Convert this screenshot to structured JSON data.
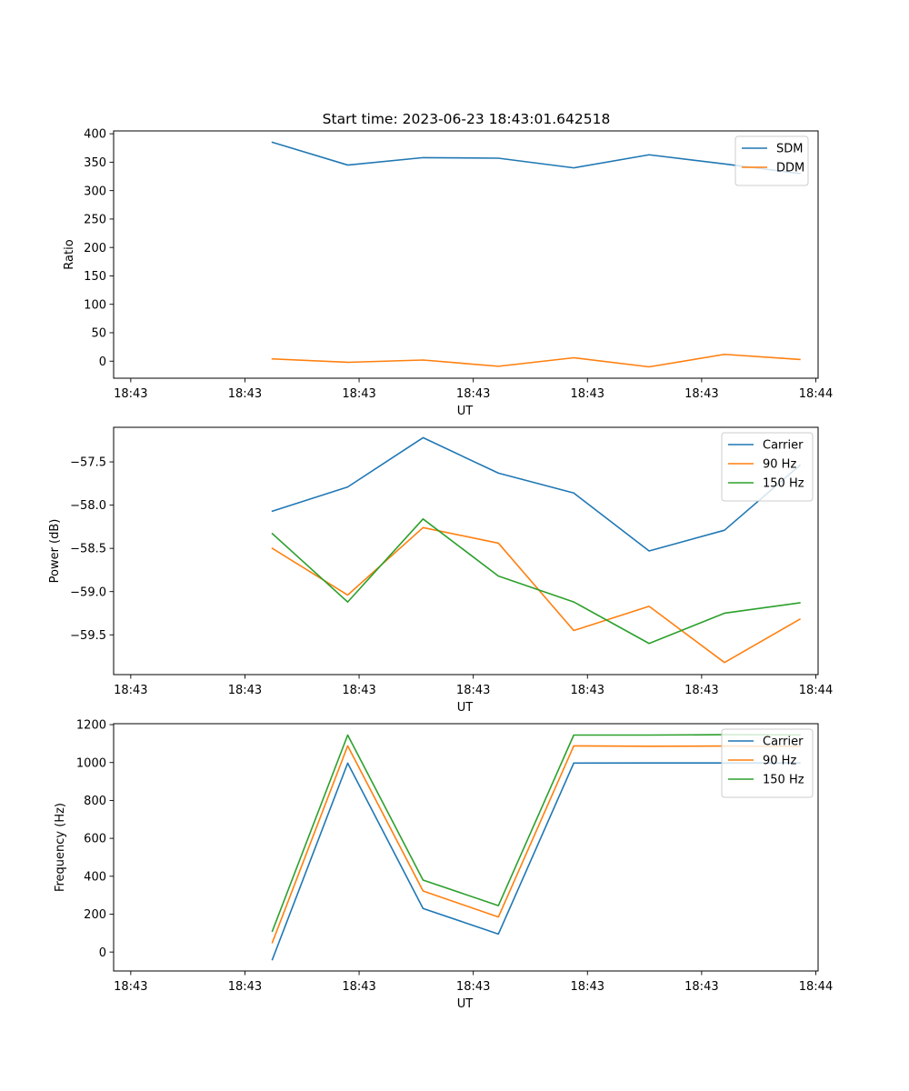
{
  "figure": {
    "title": "Start time: 2023-06-23 18:43:01.642518"
  },
  "chart_data": [
    {
      "type": "line",
      "title": "Start time: 2023-06-23 18:43:01.642518",
      "xlabel": "UT",
      "ylabel": "Ratio",
      "x": [
        1.64,
        2.3,
        2.96,
        3.62,
        4.28,
        4.94,
        5.6,
        6.26
      ],
      "xlim": [
        0.25,
        6.42
      ],
      "x_ticks": [
        0.4,
        1.4,
        2.4,
        3.4,
        4.4,
        5.4,
        6.4
      ],
      "x_tick_labels": [
        "18:43",
        "18:43",
        "18:43",
        "18:43",
        "18:43",
        "18:43",
        "18:44"
      ],
      "ylim": [
        -30,
        405
      ],
      "y_ticks": [
        0,
        50,
        100,
        150,
        200,
        250,
        300,
        350,
        400
      ],
      "y_tick_labels": [
        "0",
        "50",
        "100",
        "150",
        "200",
        "250",
        "300",
        "350",
        "400"
      ],
      "grid": false,
      "legend_position": "upper-right",
      "series": [
        {
          "name": "SDM",
          "color": "#1f77b4",
          "values": [
            385,
            345,
            358,
            357,
            340,
            363,
            347,
            330
          ]
        },
        {
          "name": "DDM",
          "color": "#ff7f0e",
          "values": [
            4,
            -2,
            2,
            -9,
            6,
            -10,
            12,
            3
          ]
        }
      ]
    },
    {
      "type": "line",
      "xlabel": "UT",
      "ylabel": "Power (dB)",
      "x": [
        1.64,
        2.3,
        2.96,
        3.62,
        4.28,
        4.94,
        5.6,
        6.26
      ],
      "xlim": [
        0.25,
        6.42
      ],
      "x_ticks": [
        0.4,
        1.4,
        2.4,
        3.4,
        4.4,
        5.4,
        6.4
      ],
      "x_tick_labels": [
        "18:43",
        "18:43",
        "18:43",
        "18:43",
        "18:43",
        "18:43",
        "18:44"
      ],
      "ylim": [
        -59.96,
        -57.1
      ],
      "y_ticks": [
        -57.5,
        -58.0,
        -58.5,
        -59.0,
        -59.5
      ],
      "y_tick_labels": [
        "−57.5",
        "−58.0",
        "−58.5",
        "−59.0",
        "−59.5"
      ],
      "grid": false,
      "legend_position": "upper-right",
      "series": [
        {
          "name": "Carrier",
          "color": "#1f77b4",
          "values": [
            -58.07,
            -57.79,
            -57.22,
            -57.63,
            -57.86,
            -58.53,
            -58.29,
            -57.54
          ]
        },
        {
          "name": "90 Hz",
          "color": "#ff7f0e",
          "values": [
            -58.5,
            -59.04,
            -58.26,
            -58.44,
            -59.45,
            -59.17,
            -59.82,
            -59.32
          ]
        },
        {
          "name": "150 Hz",
          "color": "#2ca02c",
          "values": [
            -58.33,
            -59.12,
            -58.16,
            -58.82,
            -59.12,
            -59.6,
            -59.25,
            -59.13
          ]
        }
      ]
    },
    {
      "type": "line",
      "xlabel": "UT",
      "ylabel": "Frequency (Hz)",
      "x": [
        1.64,
        2.3,
        2.96,
        3.62,
        4.28,
        4.94,
        5.6,
        6.26
      ],
      "xlim": [
        0.25,
        6.42
      ],
      "x_ticks": [
        0.4,
        1.4,
        2.4,
        3.4,
        4.4,
        5.4,
        6.4
      ],
      "x_tick_labels": [
        "18:43",
        "18:43",
        "18:43",
        "18:43",
        "18:43",
        "18:43",
        "18:44"
      ],
      "ylim": [
        -100,
        1205
      ],
      "y_ticks": [
        0,
        200,
        400,
        600,
        800,
        1000,
        1200
      ],
      "y_tick_labels": [
        "0",
        "200",
        "400",
        "600",
        "800",
        "1000",
        "1200"
      ],
      "grid": false,
      "legend_position": "upper-right",
      "series": [
        {
          "name": "Carrier",
          "color": "#1f77b4",
          "values": [
            -40,
            997,
            230,
            95,
            997,
            998,
            998,
            998
          ]
        },
        {
          "name": "90 Hz",
          "color": "#ff7f0e",
          "values": [
            50,
            1088,
            322,
            185,
            1088,
            1086,
            1087,
            1085
          ]
        },
        {
          "name": "150 Hz",
          "color": "#2ca02c",
          "values": [
            110,
            1145,
            380,
            245,
            1145,
            1145,
            1147,
            1146
          ]
        }
      ]
    }
  ]
}
